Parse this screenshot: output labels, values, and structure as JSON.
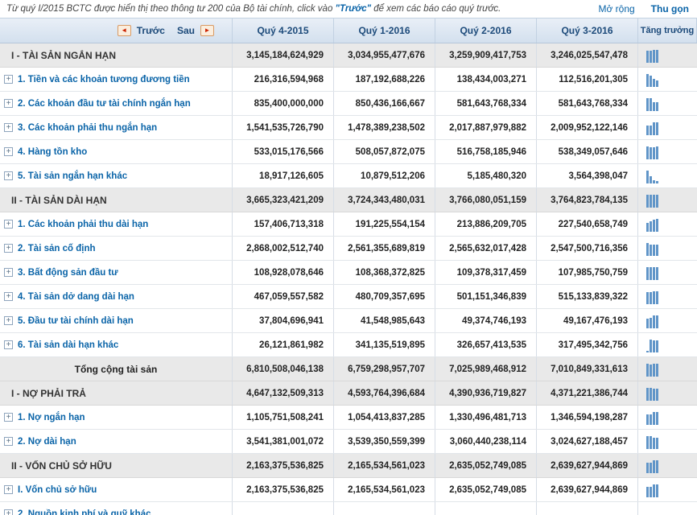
{
  "info_bar": {
    "text_before": "Từ quý I/2015 BCTC được hiển thị theo thông tư 200 của Bộ tài chính, click vào ",
    "highlight": "\"Trước\"",
    "text_after": " để xem các báo cáo quý trước.",
    "expand_label": "Mở rộng",
    "collapse_label": "Thu gọn"
  },
  "icons": {
    "expand_glyph": "+",
    "prev_arrow": "◄",
    "next_arrow": "►"
  },
  "colors": {
    "link_blue": "#0a64a8",
    "header_navy": "#1c4a7a",
    "bar_blue": "#6095c8",
    "section_bg": "#e9e9e9",
    "header_bg": "#dce6f2",
    "nav_arrow_red": "#cc2200"
  },
  "header": {
    "prev_label": "Trước",
    "next_label": "Sau",
    "columns": [
      "Quý 4-2015",
      "Quý 1-2016",
      "Quý 2-2016",
      "Quý 3-2016"
    ],
    "growth_label": "Tăng trưởng"
  },
  "rows": [
    {
      "label": "I - TÀI SẢN NGẮN HẠN",
      "type": "section",
      "expandable": false,
      "values": [
        "3,145,184,624,929",
        "3,034,955,477,676",
        "3,259,909,417,753",
        "3,246,025,547,478"
      ]
    },
    {
      "label": "1. Tiền và các khoản tương đương tiền",
      "type": "item",
      "expandable": true,
      "values": [
        "216,316,594,968",
        "187,192,688,226",
        "138,434,003,271",
        "112,516,201,305"
      ]
    },
    {
      "label": "2. Các khoản đầu tư tài chính ngắn hạn",
      "type": "item",
      "expandable": true,
      "values": [
        "835,400,000,000",
        "850,436,166,667",
        "581,643,768,334",
        "581,643,768,334"
      ]
    },
    {
      "label": "3. Các khoản phải thu ngắn hạn",
      "type": "item",
      "expandable": true,
      "values": [
        "1,541,535,726,790",
        "1,478,389,238,502",
        "2,017,887,979,882",
        "2,009,952,122,146"
      ]
    },
    {
      "label": "4. Hàng tồn kho",
      "type": "item",
      "expandable": true,
      "values": [
        "533,015,176,566",
        "508,057,872,075",
        "516,758,185,946",
        "538,349,057,646"
      ]
    },
    {
      "label": "5. Tài sản ngắn hạn khác",
      "type": "item",
      "expandable": true,
      "values": [
        "18,917,126,605",
        "10,879,512,206",
        "5,185,480,320",
        "3,564,398,047"
      ]
    },
    {
      "label": "II - TÀI SẢN DÀI HẠN",
      "type": "section",
      "expandable": false,
      "values": [
        "3,665,323,421,209",
        "3,724,343,480,031",
        "3,766,080,051,159",
        "3,764,823,784,135"
      ]
    },
    {
      "label": "1. Các khoản phải thu dài hạn",
      "type": "item",
      "expandable": true,
      "values": [
        "157,406,713,318",
        "191,225,554,154",
        "213,886,209,705",
        "227,540,658,749"
      ]
    },
    {
      "label": "2. Tài sản cố định",
      "type": "item",
      "expandable": true,
      "values": [
        "2,868,002,512,740",
        "2,561,355,689,819",
        "2,565,632,017,428",
        "2,547,500,716,356"
      ]
    },
    {
      "label": "3. Bất động sản đầu tư",
      "type": "item",
      "expandable": true,
      "values": [
        "108,928,078,646",
        "108,368,372,825",
        "109,378,317,459",
        "107,985,750,759"
      ]
    },
    {
      "label": "4. Tài sản dở dang dài hạn",
      "type": "item",
      "expandable": true,
      "values": [
        "467,059,557,582",
        "480,709,357,695",
        "501,151,346,839",
        "515,133,839,322"
      ]
    },
    {
      "label": "5. Đầu tư tài chính dài hạn",
      "type": "item",
      "expandable": true,
      "values": [
        "37,804,696,941",
        "41,548,985,643",
        "49,374,746,193",
        "49,167,476,193"
      ]
    },
    {
      "label": "6. Tài sản dài hạn khác",
      "type": "item",
      "expandable": true,
      "values": [
        "26,121,861,982",
        "341,135,519,895",
        "326,657,413,535",
        "317,495,342,756"
      ]
    },
    {
      "label": "Tổng cộng tài sản",
      "type": "total",
      "expandable": false,
      "values": [
        "6,810,508,046,138",
        "6,759,298,957,707",
        "7,025,989,468,912",
        "7,010,849,331,613"
      ]
    },
    {
      "label": "I - NỢ PHẢI TRẢ",
      "type": "section",
      "expandable": false,
      "values": [
        "4,647,132,509,313",
        "4,593,764,396,684",
        "4,390,936,719,827",
        "4,371,221,386,744"
      ]
    },
    {
      "label": "1. Nợ ngắn hạn",
      "type": "item",
      "expandable": true,
      "values": [
        "1,105,751,508,241",
        "1,054,413,837,285",
        "1,330,496,481,713",
        "1,346,594,198,287"
      ]
    },
    {
      "label": "2. Nợ dài hạn",
      "type": "item",
      "expandable": true,
      "values": [
        "3,541,381,001,072",
        "3,539,350,559,399",
        "3,060,440,238,114",
        "3,024,627,188,457"
      ]
    },
    {
      "label": "II - VỐN CHỦ SỞ HỮU",
      "type": "section",
      "expandable": false,
      "values": [
        "2,163,375,536,825",
        "2,165,534,561,023",
        "2,635,052,749,085",
        "2,639,627,944,869"
      ]
    },
    {
      "label": "I. Vốn chủ sở hữu",
      "type": "item",
      "expandable": true,
      "values": [
        "2,163,375,536,825",
        "2,165,534,561,023",
        "2,635,052,749,085",
        "2,639,627,944,869"
      ]
    },
    {
      "label": "2. Nguồn kinh phí và quỹ khác",
      "type": "item",
      "expandable": true,
      "values": [
        "",
        "",
        "",
        ""
      ]
    }
  ]
}
